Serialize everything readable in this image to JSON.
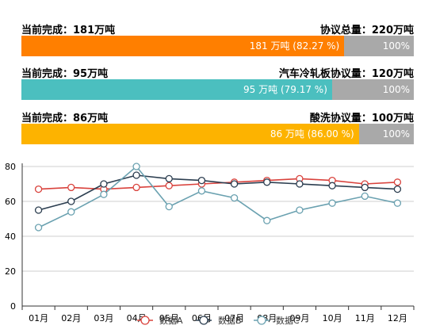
{
  "progress": [
    {
      "done_label": "当前完成：181万吨",
      "total_label": "协议总量：220万吨",
      "bar_label": "181 万吨 (82.27 %)",
      "total_bar_label": "100%",
      "fraction": 0.8227,
      "color": "#ff7f00"
    },
    {
      "done_label": "当前完成：95万吨",
      "total_label": "汽车冷轧板协议量：120万吨",
      "bar_label": "95 万吨 (79.17 %)",
      "total_bar_label": "100%",
      "fraction": 0.7917,
      "color": "#4bbfbf"
    },
    {
      "done_label": "当前完成：86万吨",
      "total_label": "酸洗协议量：100万吨",
      "bar_label": "86 万吨 (86.00 %)",
      "total_bar_label": "100%",
      "fraction": 0.86,
      "color": "#fdb300"
    }
  ],
  "track_color": "#a9a9a9",
  "chart_data": {
    "type": "line",
    "categories": [
      "01月",
      "02月",
      "03月",
      "04月",
      "05月",
      "06月",
      "07月",
      "08月",
      "09月",
      "10月",
      "11月",
      "12月"
    ],
    "series": [
      {
        "name": "数据A",
        "color": "#d9423c",
        "values": [
          67,
          68,
          67,
          68,
          69,
          70,
          71,
          72,
          73,
          72,
          70,
          71
        ]
      },
      {
        "name": "数据B",
        "color": "#2c3e50",
        "values": [
          55,
          60,
          70,
          75,
          73,
          72,
          70,
          71,
          70,
          69,
          68,
          67
        ]
      },
      {
        "name": "数据C",
        "color": "#6aa1b0",
        "values": [
          45,
          54,
          64,
          80,
          57,
          66,
          62,
          49,
          55,
          59,
          63,
          59
        ]
      }
    ],
    "yticks": [
      0,
      20,
      40,
      60,
      80
    ],
    "ylim": [
      0,
      80
    ],
    "grid": true,
    "legend_position": "bottom"
  }
}
